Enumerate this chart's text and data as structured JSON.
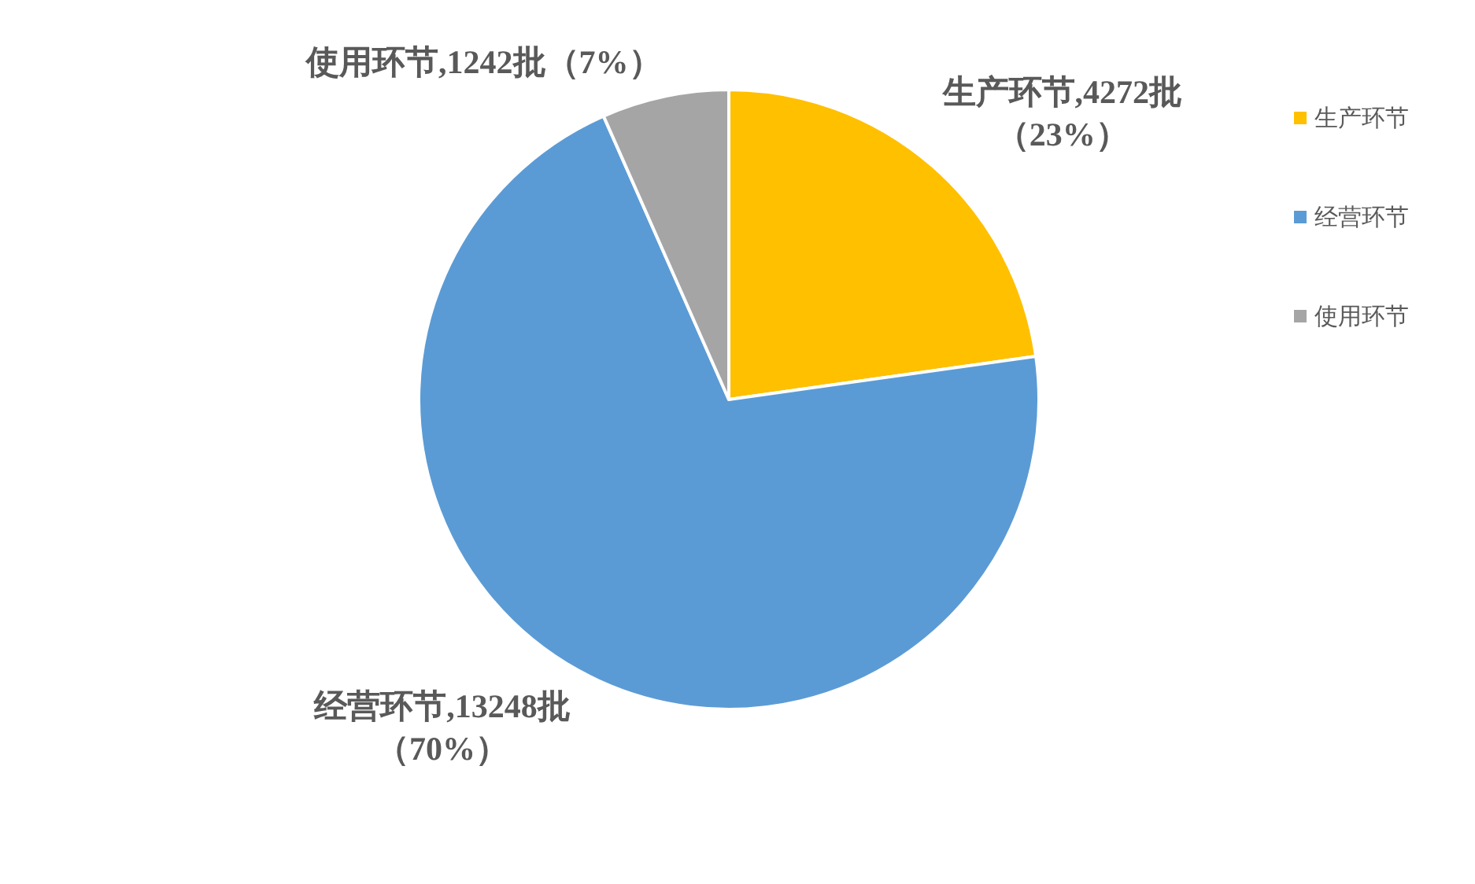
{
  "chart_data": {
    "type": "pie",
    "categories": [
      "生产环节",
      "经营环节",
      "使用环节"
    ],
    "values": [
      4272,
      13248,
      1242
    ],
    "colors": [
      "#ffc000",
      "#5b9bd5",
      "#a5a5a5"
    ],
    "value_labels": [
      "生产环节,4272批（23%）",
      "经营环节,13248批（70%）",
      "使用环节,1242批（7%）"
    ],
    "legend": "top right"
  }
}
